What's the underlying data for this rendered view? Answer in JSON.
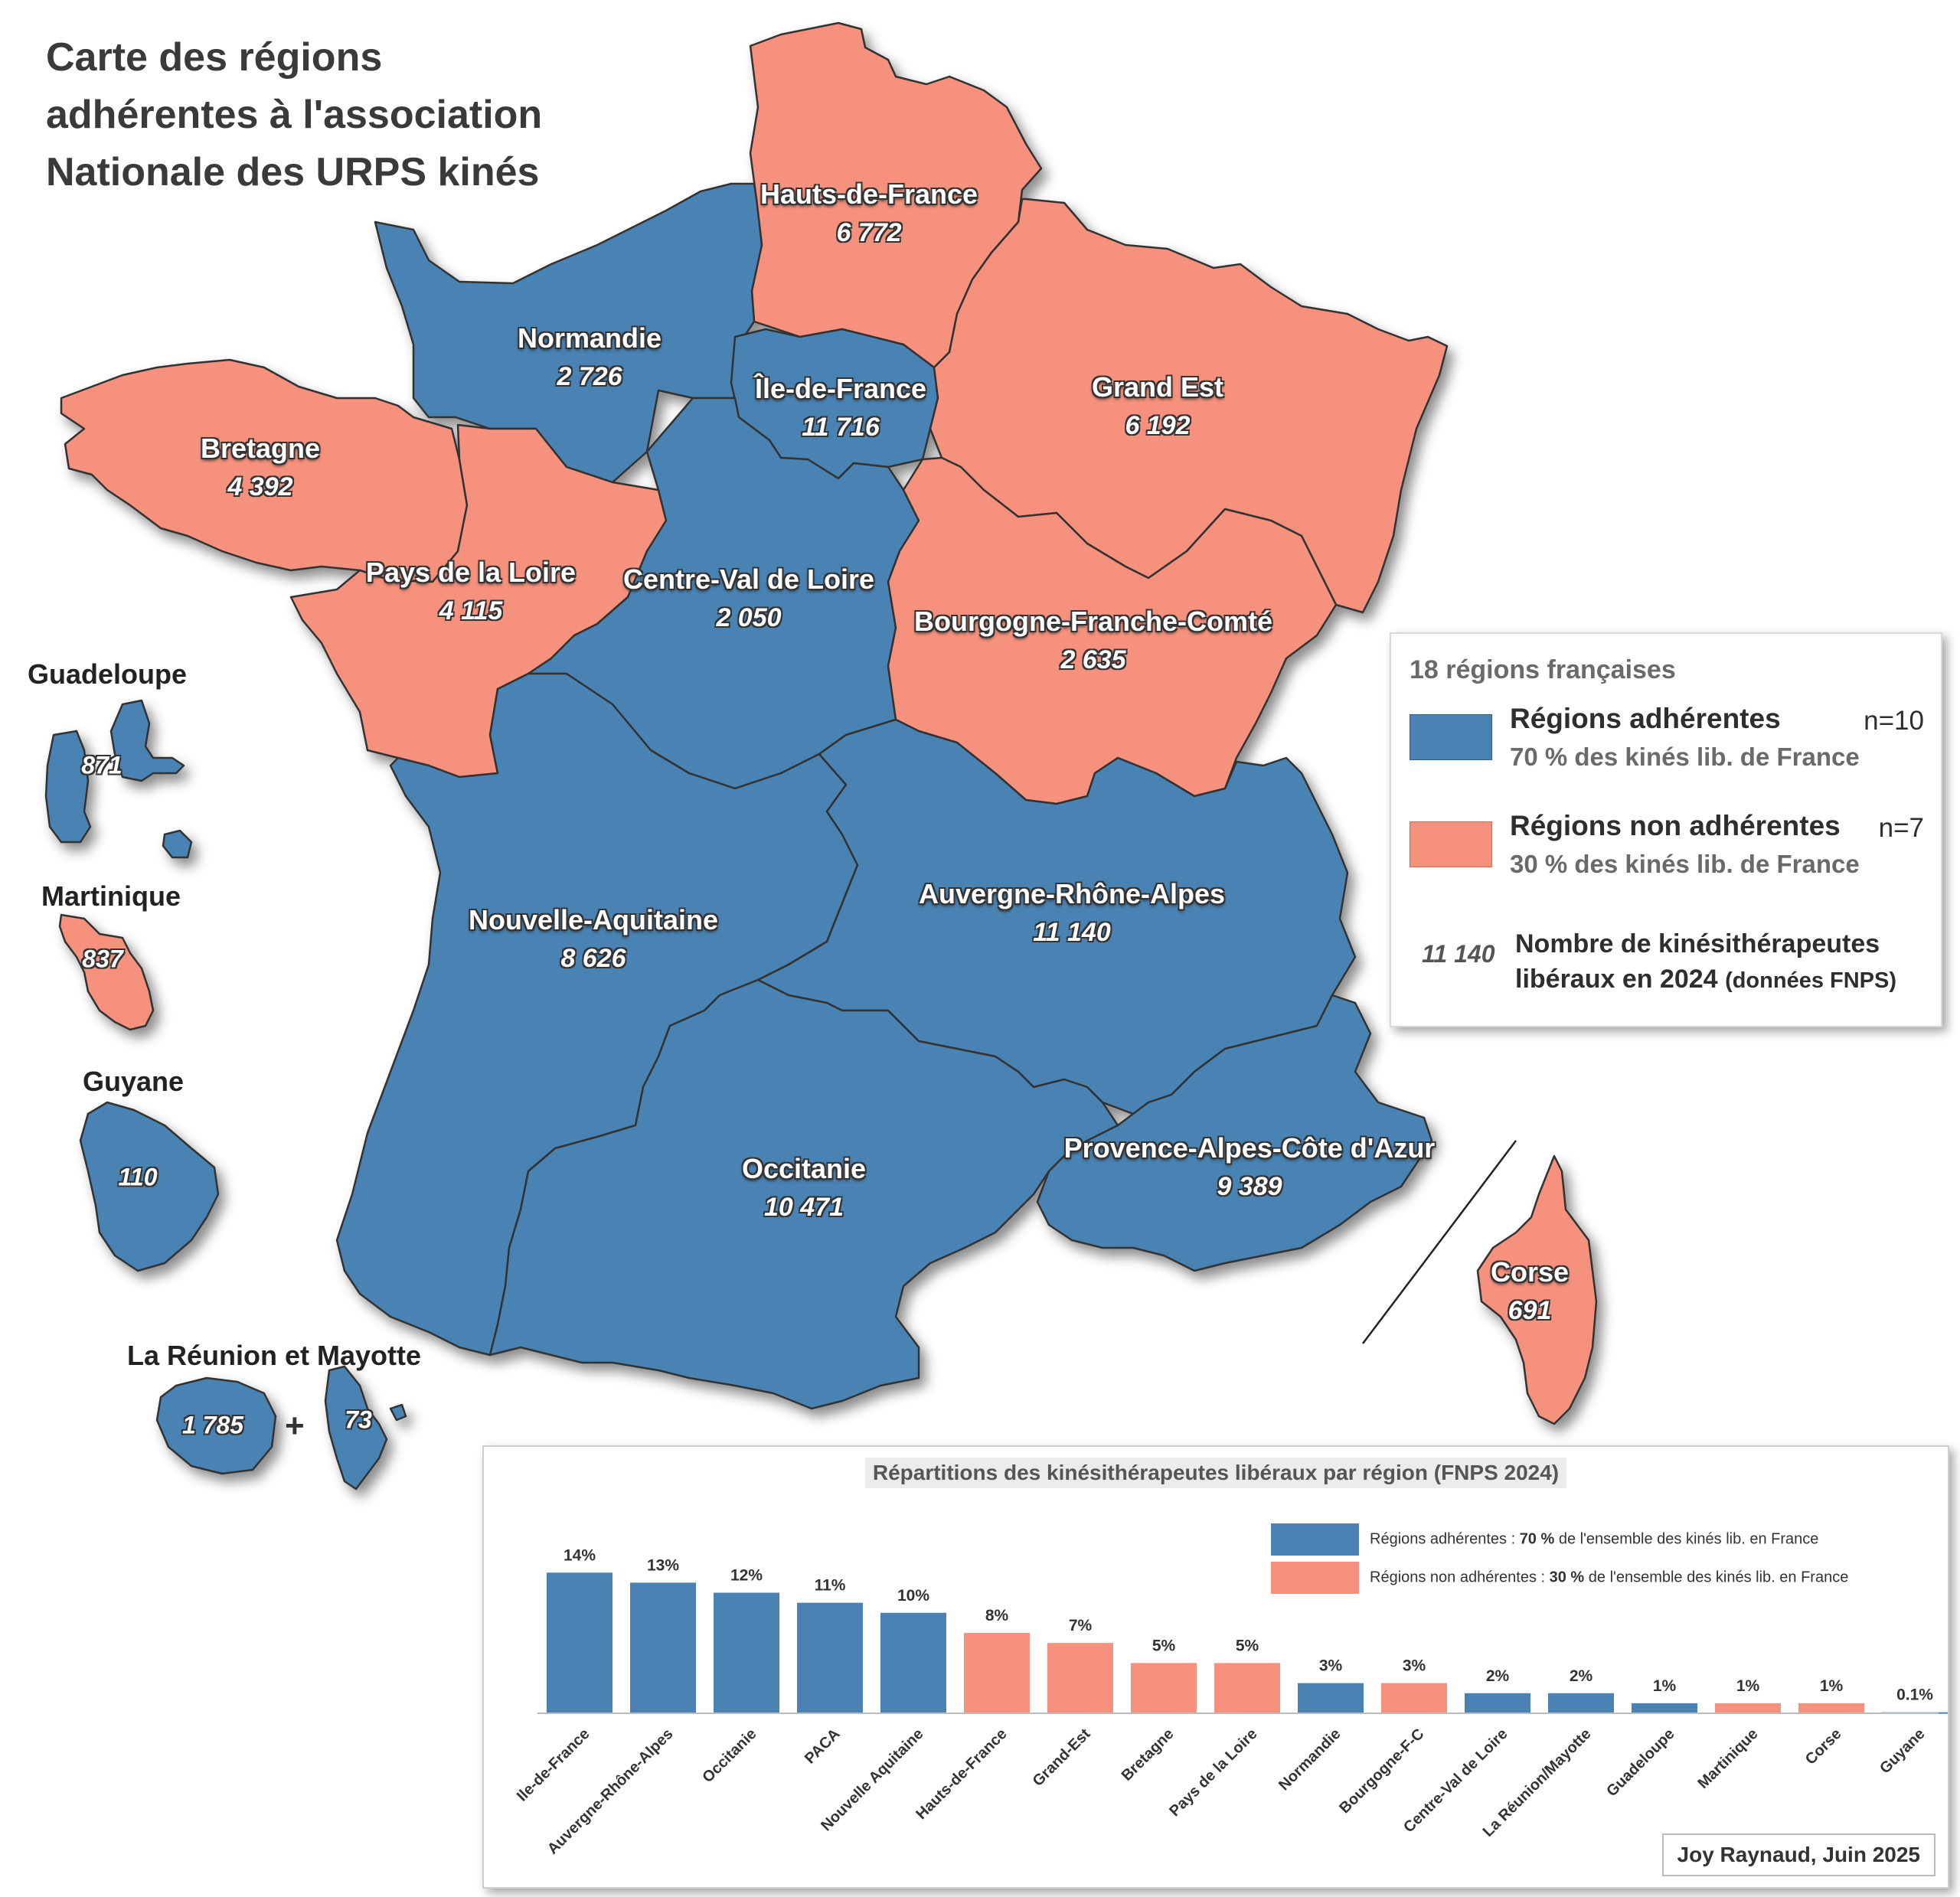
{
  "title": {
    "line1": "Carte des régions",
    "line2": "adhérentes à l'association",
    "line3": "Nationale des URPS kinés"
  },
  "colors": {
    "adherent": "#4a83b3",
    "non_adherent": "#f5917c",
    "outline": "#333333"
  },
  "regions": {
    "hauts_de_france": {
      "name": "Hauts-de-France",
      "value": "6 772",
      "adherent": false
    },
    "normandie": {
      "name": "Normandie",
      "value": "2 726",
      "adherent": true
    },
    "ile_de_france": {
      "name": "Île-de-France",
      "value": "11 716",
      "adherent": true
    },
    "grand_est": {
      "name": "Grand Est",
      "value": "6 192",
      "adherent": false
    },
    "bretagne": {
      "name": "Bretagne",
      "value": "4 392",
      "adherent": false
    },
    "pays_de_la_loire": {
      "name": "Pays de la Loire",
      "value": "4 115",
      "adherent": false
    },
    "centre_val_de_loire": {
      "name": "Centre-Val de Loire",
      "value": "2 050",
      "adherent": true
    },
    "bourgogne_franche_comte": {
      "name": "Bourgogne-Franche-Comté",
      "value": "2 635",
      "adherent": false
    },
    "nouvelle_aquitaine": {
      "name": "Nouvelle-Aquitaine",
      "value": "8 626",
      "adherent": true
    },
    "auvergne_rhone_alpes": {
      "name": "Auvergne-Rhône-Alpes",
      "value": "11 140",
      "adherent": true
    },
    "occitanie": {
      "name": "Occitanie",
      "value": "10 471",
      "adherent": true
    },
    "paca": {
      "name": "Provence-Alpes-Côte d'Azur",
      "value": "9 389",
      "adherent": true
    },
    "corse": {
      "name": "Corse",
      "value": "691",
      "adherent": false
    }
  },
  "overseas": {
    "guadeloupe": {
      "name": "Guadeloupe",
      "value": "871",
      "adherent": true
    },
    "martinique": {
      "name": "Martinique",
      "value": "837",
      "adherent": false
    },
    "guyane": {
      "name": "Guyane",
      "value": "110",
      "adherent": true
    },
    "reunion_mayotte": {
      "name": "La Réunion et Mayotte",
      "value_reunion": "1 785",
      "value_mayotte": "73",
      "plus": "+",
      "adherent": true
    }
  },
  "legend": {
    "heading": "18 régions françaises",
    "adherent_title": "Régions adhérentes",
    "adherent_sub": "70 % des kinés lib. de France",
    "adherent_n": "n=10",
    "non_adherent_title": "Régions non adhérentes",
    "non_adherent_sub": "30 % des kinés lib. de France",
    "non_adherent_n": "n=7",
    "example_value": "11 140",
    "description_line1": "Nombre de kinésithérapeutes",
    "description_line2": "libéraux en 2024",
    "description_source": "(données FNPS)"
  },
  "chart_data": {
    "type": "bar",
    "title": "Répartitions des kinésithérapeutes libéraux par région (FNPS 2024)",
    "categories": [
      "Ile-de-France",
      "Auvergne-Rhône-Alpes",
      "Occitanie",
      "PACA",
      "Nouvelle Aquitaine",
      "Hauts-de-France",
      "Grand-Est",
      "Bretagne",
      "Pays de la Loire",
      "Normandie",
      "Bourgogne-F-C",
      "Centre-Val de Loire",
      "La Réunion/Mayotte",
      "Guadeloupe",
      "Martinique",
      "Corse",
      "Guyane"
    ],
    "values": [
      14,
      13,
      12,
      11,
      10,
      8,
      7,
      5,
      5,
      3,
      3,
      2,
      2,
      1,
      1,
      1,
      0.1
    ],
    "value_labels": [
      "14%",
      "13%",
      "12%",
      "11%",
      "10%",
      "8%",
      "7%",
      "5%",
      "5%",
      "3%",
      "3%",
      "2%",
      "2%",
      "1%",
      "1%",
      "1%",
      "0.1%"
    ],
    "adherent": [
      true,
      true,
      true,
      true,
      true,
      false,
      false,
      false,
      false,
      true,
      false,
      true,
      true,
      true,
      false,
      false,
      true
    ],
    "legend_adherent_pre": "Régions adhérentes : ",
    "legend_adherent_bold": "70 %",
    "legend_adherent_post": " de l'ensemble des kinés lib. en France",
    "legend_non_adherent_pre": "Régions non adhérentes : ",
    "legend_non_adherent_bold": "30 %",
    "legend_non_adherent_post": " de l'ensemble des kinés lib. en France",
    "ylim": [
      0,
      16
    ]
  },
  "credit": "Joy Raynaud, Juin 2025"
}
